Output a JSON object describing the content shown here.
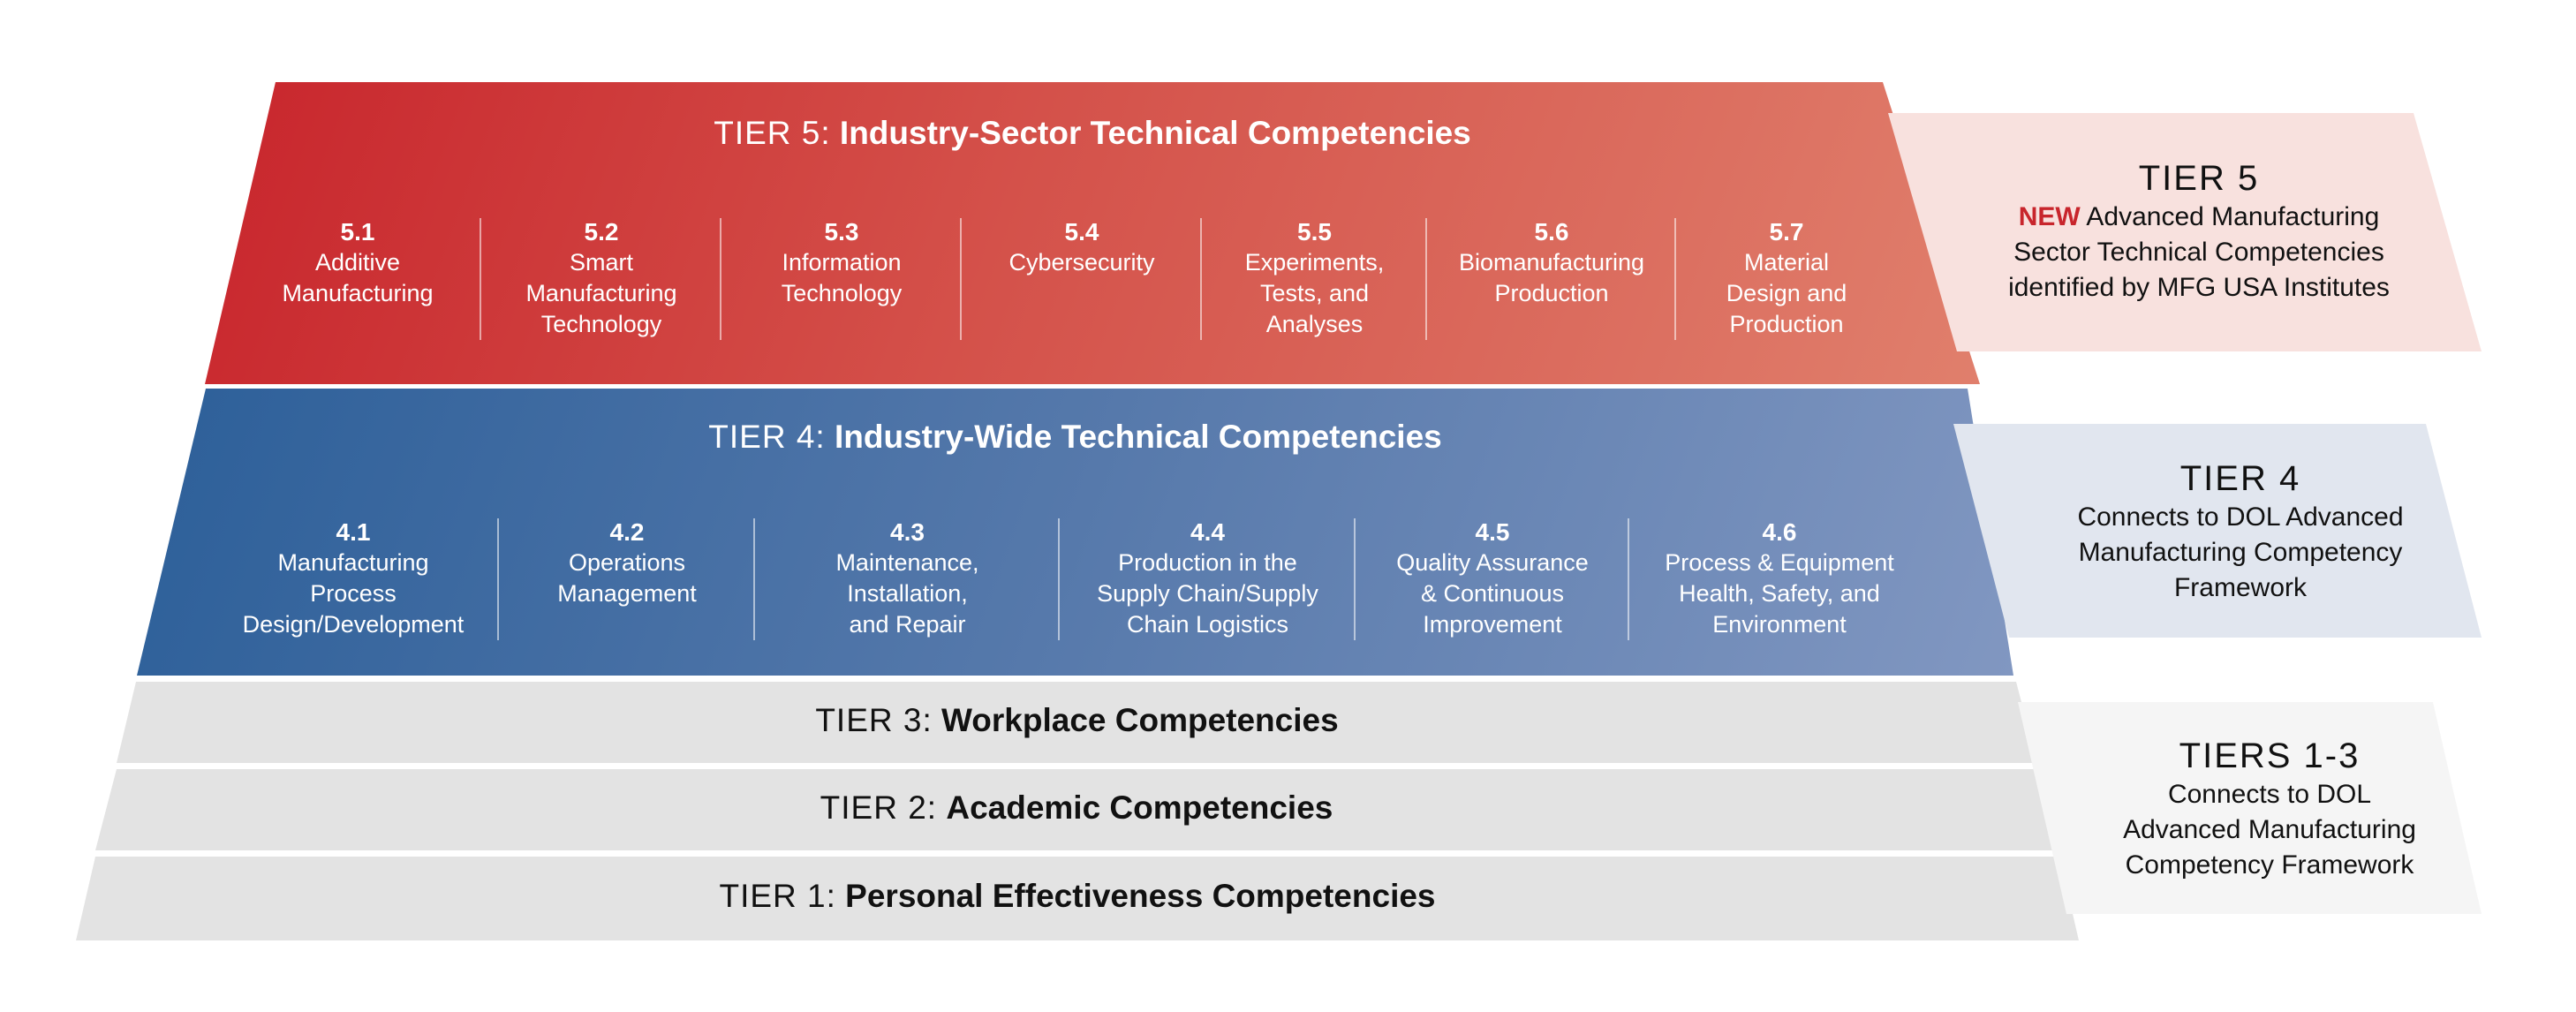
{
  "tier5": {
    "prefix": "TIER 5:",
    "title": "Industry-Sector Technical Competencies",
    "items": [
      {
        "num": "5.1",
        "lines": [
          "Additive",
          "Manufacturing"
        ]
      },
      {
        "num": "5.2",
        "lines": [
          "Smart",
          "Manufacturing",
          "Technology"
        ]
      },
      {
        "num": "5.3",
        "lines": [
          "Information",
          "Technology"
        ]
      },
      {
        "num": "5.4",
        "lines": [
          "Cybersecurity"
        ]
      },
      {
        "num": "5.5",
        "lines": [
          "Experiments,",
          "Tests, and",
          "Analyses"
        ]
      },
      {
        "num": "5.6",
        "lines": [
          "Biomanufacturing",
          "Production"
        ]
      },
      {
        "num": "5.7",
        "lines": [
          "Material",
          "Design and",
          "Production"
        ]
      }
    ]
  },
  "tier4": {
    "prefix": "TIER 4:",
    "title": "Industry-Wide Technical Competencies",
    "items": [
      {
        "num": "4.1",
        "lines": [
          "Manufacturing",
          "Process",
          "Design/Development"
        ]
      },
      {
        "num": "4.2",
        "lines": [
          "Operations",
          "Management"
        ]
      },
      {
        "num": "4.3",
        "lines": [
          "Maintenance,",
          "Installation,",
          "and Repair"
        ]
      },
      {
        "num": "4.4",
        "lines": [
          "Production in the",
          "Supply Chain/Supply",
          "Chain Logistics"
        ]
      },
      {
        "num": "4.5",
        "lines": [
          "Quality Assurance",
          "& Continuous",
          "Improvement"
        ]
      },
      {
        "num": "4.6",
        "lines": [
          "Process & Equipment",
          "Health, Safety, and",
          "Environment"
        ]
      }
    ]
  },
  "tier3": {
    "prefix": "TIER 3:",
    "title": "Workplace Competencies"
  },
  "tier2": {
    "prefix": "TIER 2:",
    "title": "Academic Competencies"
  },
  "tier1": {
    "prefix": "TIER 1:",
    "title": "Personal Effectiveness Competencies"
  },
  "side": {
    "tier5": {
      "head": "TIER 5",
      "new": "NEW",
      "line1": "Advanced Manufacturing",
      "line2": "Sector Technical Competencies",
      "line3": "identified by MFG USA Institutes"
    },
    "tier4": {
      "head": "TIER 4",
      "line1": "Connects to DOL Advanced",
      "line2": "Manufacturing Competency",
      "line3": "Framework"
    },
    "tiers13": {
      "head": "TIERS 1-3",
      "line1": "Connects to DOL",
      "line2": "Advanced Manufacturing",
      "line3": "Competency Framework"
    }
  },
  "colors": {
    "tier5_start": "#c8252c",
    "tier5_end": "#e07f6c",
    "tier4_start": "#2c5f99",
    "tier4_end": "#8197c1",
    "tier_gray": "#e3e3e3",
    "new_red": "#c8252c"
  }
}
